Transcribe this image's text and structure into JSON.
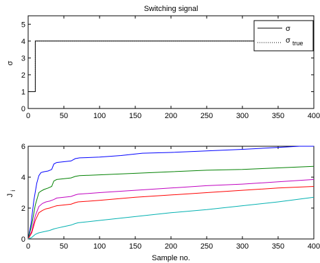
{
  "chart_data": [
    {
      "type": "line",
      "title": "Switching signal",
      "xlabel": "",
      "ylabel": "σ",
      "xlim": [
        0,
        400
      ],
      "ylim": [
        0,
        5.5
      ],
      "xticks": [
        0,
        50,
        100,
        150,
        200,
        250,
        300,
        350,
        400
      ],
      "yticks": [
        0,
        1,
        2,
        3,
        4,
        5
      ],
      "legend_position": "top-right",
      "series": [
        {
          "name": "σ",
          "legend_main": "σ",
          "legend_sub": "",
          "color": "#000000",
          "dash": "solid",
          "x": [
            0,
            10,
            10,
            400
          ],
          "y": [
            1,
            1,
            4,
            4
          ]
        },
        {
          "name": "σ_true",
          "legend_main": "σ",
          "legend_sub": "true",
          "color": "#000000",
          "dash": "dotted",
          "x": [
            0,
            10,
            10,
            400
          ],
          "y": [
            1,
            1,
            4,
            4
          ]
        }
      ]
    },
    {
      "type": "line",
      "title": "",
      "xlabel": "Sample no.",
      "ylabel": "J",
      "ylabel_sub": "i",
      "xlim": [
        0,
        400
      ],
      "ylim": [
        0,
        6
      ],
      "xticks": [
        0,
        50,
        100,
        150,
        200,
        250,
        300,
        350,
        400
      ],
      "yticks": [
        0,
        2,
        4,
        6
      ],
      "series": [
        {
          "color": "#0000ff",
          "x": [
            0,
            4,
            8,
            12,
            15,
            18,
            22,
            28,
            33,
            36,
            40,
            50,
            60,
            66,
            72,
            100,
            130,
            160,
            200,
            250,
            300,
            340,
            380,
            400
          ],
          "y": [
            0,
            1.0,
            2.5,
            3.6,
            4.1,
            4.3,
            4.35,
            4.4,
            4.5,
            4.85,
            4.95,
            5.0,
            5.05,
            5.2,
            5.25,
            5.3,
            5.4,
            5.55,
            5.6,
            5.7,
            5.8,
            5.9,
            6.0,
            6.0
          ]
        },
        {
          "color": "#008000",
          "x": [
            0,
            5,
            10,
            15,
            18,
            22,
            28,
            33,
            36,
            40,
            50,
            60,
            66,
            72,
            100,
            150,
            200,
            250,
            300,
            350,
            400
          ],
          "y": [
            0,
            0.9,
            2.2,
            3.0,
            3.1,
            3.2,
            3.3,
            3.4,
            3.75,
            3.85,
            3.9,
            3.95,
            4.05,
            4.1,
            4.15,
            4.25,
            4.35,
            4.45,
            4.5,
            4.6,
            4.7
          ]
        },
        {
          "color": "#c000c0",
          "x": [
            0,
            5,
            10,
            15,
            20,
            25,
            30,
            36,
            40,
            50,
            60,
            66,
            70,
            100,
            150,
            200,
            250,
            300,
            350,
            400
          ],
          "y": [
            0,
            0.5,
            1.5,
            2.1,
            2.3,
            2.4,
            2.45,
            2.55,
            2.65,
            2.7,
            2.75,
            2.85,
            2.9,
            3.0,
            3.15,
            3.3,
            3.45,
            3.55,
            3.7,
            3.85
          ]
        },
        {
          "color": "#ff0000",
          "x": [
            0,
            5,
            10,
            15,
            20,
            25,
            30,
            36,
            40,
            50,
            60,
            66,
            70,
            100,
            150,
            200,
            250,
            300,
            350,
            400
          ],
          "y": [
            0,
            0.4,
            1.2,
            1.7,
            1.85,
            1.95,
            2.0,
            2.1,
            2.15,
            2.2,
            2.25,
            2.35,
            2.4,
            2.5,
            2.7,
            2.85,
            3.0,
            3.15,
            3.3,
            3.4
          ]
        },
        {
          "color": "#00b0b0",
          "x": [
            0,
            5,
            10,
            15,
            20,
            25,
            30,
            36,
            40,
            50,
            60,
            66,
            70,
            100,
            150,
            200,
            250,
            300,
            350,
            400
          ],
          "y": [
            0,
            0.1,
            0.3,
            0.4,
            0.45,
            0.5,
            0.55,
            0.65,
            0.7,
            0.8,
            0.9,
            1.0,
            1.05,
            1.2,
            1.45,
            1.7,
            1.9,
            2.15,
            2.4,
            2.7
          ]
        }
      ]
    }
  ]
}
